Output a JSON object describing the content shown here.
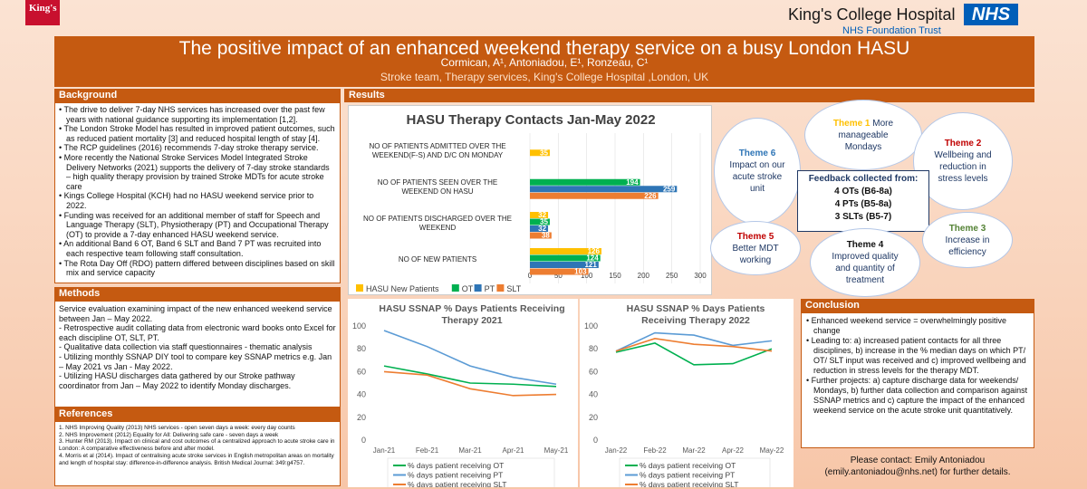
{
  "header": {
    "kings_logo": "King's",
    "hospital_name": "King's College Hospital",
    "nhs": "NHS",
    "trust": "NHS Foundation Trust",
    "title": "The positive impact of an enhanced weekend therapy service on a busy London HASU",
    "authors": "Cormican, A¹, Antoniadou, E¹, Ronzeau, C¹",
    "affiliation": "Stroke team, Therapy services, King's College Hospital ,London, UK"
  },
  "background": {
    "heading": "Background",
    "items": [
      "The drive to deliver 7-day NHS services has increased over the past few years with national guidance supporting its implementation [1,2].",
      "The London Stroke Model has resulted in improved patient outcomes, such as reduced patient mortality [3] and reduced hospital length of stay [4].",
      "The RCP guidelines (2016) recommends 7-day stroke therapy service.",
      "More recently the National Stroke Services Model Integrated Stroke Delivery Networks (2021) supports the delivery of 7-day stroke standards – high quality therapy provision by trained Stroke MDTs for acute stroke care",
      "Kings College Hospital (KCH) had no HASU weekend service prior to 2022.",
      "Funding was received for an additional member of staff for Speech and Language Therapy (SLT), Physiotherapy (PT)  and Occupational Therapy (OT) to provide a 7-day enhanced HASU weekend service.",
      "An additional Band 6 OT, Band 6 SLT and Band 7 PT was recruited into each respective team following staff consultation.",
      "The Rota Day Off (RDO) pattern differed between disciplines based on skill mix and service capacity"
    ]
  },
  "methods": {
    "heading": "Methods",
    "items": [
      "Service evaluation examining impact of the new enhanced weekend service between Jan – May 2022.",
      "- Retrospective audit collating data from electronic ward books onto Excel for each discipline OT, SLT, PT.",
      "- Qualitative data collection via staff questionnaires - thematic analysis",
      "- Utilizing monthly SSNAP DIY tool to compare key SSNAP metrics e.g. Jan – May 2021 vs Jan - May 2022.",
      "- Utilizing HASU discharges data gathered by our Stroke pathway coordinator from Jan – May 2022 to identify Monday discharges."
    ]
  },
  "references": {
    "heading": "References",
    "items": [
      "1. NHS Improving Quality (2013) NHS services - open seven days a week: every day counts",
      "2. NHS Improvement (2012) Equality for All: Delivering safe care - seven days a week",
      "3. Hunter RM (2013). Impact on clinical and cost outcomes of a centralized approach to acute stroke care in London: A comparative effectiveness before and after model.",
      "4. Morris et al (2014). Impact of centralising acute stroke services in English metropolitan areas on mortality and length of hospital stay: difference-in-difference analysis. British Medical Journal: 349:g4757."
    ]
  },
  "results": {
    "heading": "Results"
  },
  "themes": {
    "t1_label": "Theme 1",
    "t1_text": "More manageable Mondays",
    "t2_label": "Theme 2",
    "t2_text": "Wellbeing and reduction in stress levels",
    "t3_label": "Theme 3",
    "t3_text": "Increase in efficiency",
    "t4_label": "Theme 4",
    "t4_text": "Improved quality and quantity of treatment",
    "t5_label": "Theme 5",
    "t5_text": "Better MDT working",
    "t6_label": "Theme 6",
    "t6_text": "Impact on our acute stroke unit",
    "center_title": "Feedback collected from:",
    "center_l1": "4 OTs (B6-8a)",
    "center_l2": "4 PTs (B5-8a)",
    "center_l3": "3 SLTs (B5-7)"
  },
  "conclusion": {
    "heading": "Conclusion",
    "items": [
      "Enhanced weekend service = overwhelmingly positive change",
      "Leading to: a) increased patient contacts for all three disciplines, b) increase in the % median days on which PT/ OT/ SLT input was received and c) improved wellbeing and reduction in stress levels for the therapy MDT.",
      "Further projects: a) capture discharge data for weekends/ Mondays, b) further data collection and comparison against SSNAP metrics and c) capture the impact of the enhanced weekend service on the acute stroke unit quantitatively."
    ],
    "contact_l1": "Please contact: Emily Antoniadou",
    "contact_l2": "(emily.antoniadou@nhs.net) for further details."
  },
  "chart_data": [
    {
      "type": "bar",
      "title": "HASU Therapy Contacts Jan-May 2022",
      "categories": [
        "NO OF PATIENTS ADMITTED OVER THE WEEKEND(F-S) AND D/C ON MONDAY",
        "NO OF PATIENTS SEEN OVER THE WEEKEND ON HASU",
        "NO OF PATIENTS DISCHARGED OVER THE WEEKEND",
        "NO OF NEW PATIENTS"
      ],
      "series": [
        {
          "name": "HASU New Patients",
          "color": "#ffc000",
          "values": [
            35,
            null,
            32,
            126
          ]
        },
        {
          "name": "OT",
          "color": "#00b050",
          "values": [
            null,
            194,
            35,
            124
          ]
        },
        {
          "name": "PT",
          "color": "#2e75b6",
          "values": [
            null,
            259,
            32,
            121
          ]
        },
        {
          "name": "SLT",
          "color": "#ed7d31",
          "values": [
            null,
            226,
            38,
            103
          ]
        }
      ],
      "xticks": [
        "0",
        "50",
        "100",
        "150",
        "200",
        "250",
        "300"
      ],
      "xlim": [
        0,
        300
      ],
      "legend_labels": [
        "HASU New Patients",
        "OT",
        "PT",
        "SLT"
      ]
    },
    {
      "type": "line",
      "title_l1": "HASU SSNAP % Days Patients Receiving",
      "title_l2": "Therapy 2021",
      "categories": [
        "Jan-21",
        "Feb-21",
        "Mar-21",
        "Apr-21",
        "May-21"
      ],
      "ylim": [
        0,
        100
      ],
      "yticks": [
        "0",
        "20",
        "40",
        "60",
        "80",
        "100"
      ],
      "series": [
        {
          "name": "% days patient receiving OT",
          "color": "#00b050",
          "values": [
            65,
            58,
            50,
            49,
            47
          ]
        },
        {
          "name": "% days patient receiving PT",
          "color": "#5b9bd5",
          "values": [
            96,
            82,
            65,
            55,
            49
          ]
        },
        {
          "name": "% days patient receiving SLT",
          "color": "#ed7d31",
          "values": [
            60,
            57,
            45,
            39,
            40
          ]
        }
      ]
    },
    {
      "type": "line",
      "title_l1": "HASU SSNAP % Days Patients",
      "title_l2": "Receiving Therapy 2022",
      "categories": [
        "Jan-22",
        "Feb-22",
        "Mar-22",
        "Apr-22",
        "May-22"
      ],
      "ylim": [
        0,
        100
      ],
      "yticks": [
        "0",
        "20",
        "40",
        "60",
        "80",
        "100"
      ],
      "series": [
        {
          "name": "% days patient receiving OT",
          "color": "#00b050",
          "values": [
            77,
            85,
            66,
            67,
            80
          ]
        },
        {
          "name": "% days patient receiving PT",
          "color": "#5b9bd5",
          "values": [
            78,
            94,
            92,
            83,
            87
          ]
        },
        {
          "name": "% days patient receiving SLT",
          "color": "#ed7d31",
          "values": [
            78,
            89,
            84,
            82,
            78
          ]
        }
      ]
    }
  ]
}
